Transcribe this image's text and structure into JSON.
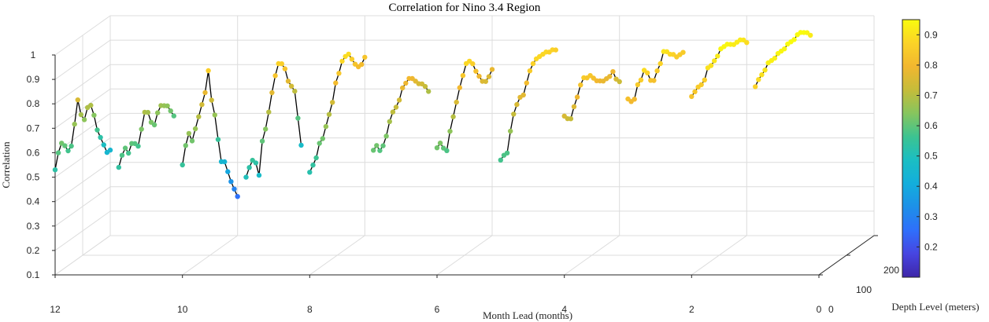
{
  "chart_data": {
    "type": "line",
    "title": "Correlation for Nino 3.4 Region",
    "xlabel": "Month Lead (months)",
    "ylabel": "Depth Level (meters)",
    "zlabel": "Correlation",
    "x_ticks": [
      "12",
      "10",
      "8",
      "6",
      "4",
      "2",
      "0"
    ],
    "y_ticks": [
      "0",
      "100",
      "200"
    ],
    "z_ticks": [
      "0.1",
      "0.2",
      "0.3",
      "0.4",
      "0.5",
      "0.6",
      "0.7",
      "0.8",
      "0.9",
      "1"
    ],
    "xlim": [
      0,
      12
    ],
    "ylim": [
      0,
      200
    ],
    "zlim": [
      0.1,
      1
    ],
    "colorbar_ticks": [
      "0.2",
      "0.3",
      "0.4",
      "0.5",
      "0.6",
      "0.7",
      "0.8",
      "0.9"
    ],
    "colorbar_range": [
      0.1,
      0.95
    ],
    "colormap": [
      "#3e26a8",
      "#4745e1",
      "#2f6ffb",
      "#1d90e8",
      "#13aedc",
      "#1bbec3",
      "#3cc391",
      "#86c55e",
      "#c5bc3a",
      "#f2b72f",
      "#fbd327",
      "#f9fb0e"
    ],
    "series_color": "#000000",
    "series": [
      {
        "lead": 12,
        "values": [
          0.53,
          0.59,
          0.62,
          0.6,
          0.57,
          0.58,
          0.66,
          0.75,
          0.68,
          0.65,
          0.69,
          0.69,
          0.64,
          0.57,
          0.53,
          0.49,
          0.45,
          0.45
        ]
      },
      {
        "lead": 11,
        "values": [
          0.54,
          0.58,
          0.6,
          0.57,
          0.6,
          0.59,
          0.57,
          0.63,
          0.69,
          0.68,
          0.63,
          0.61,
          0.65,
          0.67,
          0.66,
          0.65,
          0.62,
          0.59
        ]
      },
      {
        "lead": 10,
        "values": [
          0.55,
          0.62,
          0.66,
          0.62,
          0.66,
          0.7,
          0.74,
          0.78,
          0.86,
          0.73,
          0.66,
          0.55,
          0.45,
          0.44,
          0.39,
          0.34,
          0.3,
          0.26
        ]
      },
      {
        "lead": 9,
        "values": [
          0.5,
          0.53,
          0.55,
          0.53,
          0.47,
          0.6,
          0.64,
          0.7,
          0.77,
          0.83,
          0.87,
          0.86,
          0.83,
          0.77,
          0.74,
          0.71,
          0.59,
          0.47
        ]
      },
      {
        "lead": 8,
        "values": [
          0.52,
          0.54,
          0.56,
          0.61,
          0.62,
          0.66,
          0.7,
          0.74,
          0.81,
          0.84,
          0.88,
          0.89,
          0.89,
          0.86,
          0.83,
          0.81,
          0.81,
          0.83
        ]
      },
      {
        "lead": 7,
        "values": [
          0.61,
          0.62,
          0.59,
          0.6,
          0.63,
          0.68,
          0.71,
          0.72,
          0.74,
          0.78,
          0.79,
          0.8,
          0.79,
          0.77,
          0.75,
          0.74,
          0.72,
          0.69
        ]
      },
      {
        "lead": 6,
        "values": [
          0.62,
          0.63,
          0.6,
          0.58,
          0.65,
          0.7,
          0.75,
          0.8,
          0.84,
          0.88,
          0.88,
          0.86,
          0.82,
          0.79,
          0.76,
          0.75,
          0.76,
          0.78
        ]
      },
      {
        "lead": 5,
        "values": [
          0.57,
          0.58,
          0.58,
          0.66,
          0.72,
          0.75,
          0.77,
          0.77,
          0.81,
          0.85,
          0.87,
          0.88,
          0.88,
          0.88,
          0.88,
          0.87,
          0.87,
          0.86
        ]
      },
      {
        "lead": 4,
        "values": [
          0.75,
          0.73,
          0.72,
          0.76,
          0.79,
          0.83,
          0.85,
          0.84,
          0.84,
          0.82,
          0.8,
          0.79,
          0.78,
          0.78,
          0.78,
          0.79,
          0.75,
          0.73
        ]
      },
      {
        "lead": 3,
        "values": [
          0.82,
          0.8,
          0.8,
          0.85,
          0.86,
          0.89,
          0.87,
          0.83,
          0.82,
          0.85,
          0.87,
          0.91,
          0.9,
          0.88,
          0.87,
          0.85,
          0.85,
          0.85
        ]
      },
      {
        "lead": 2,
        "values": [
          0.83,
          0.84,
          0.85,
          0.85,
          0.86,
          0.9,
          0.9,
          0.91,
          0.92,
          0.94,
          0.94,
          0.94,
          0.93,
          0.92,
          0.92,
          0.92,
          0.91,
          0.89
        ]
      },
      {
        "lead": 1,
        "values": [
          0.87,
          0.89,
          0.9,
          0.91,
          0.93,
          0.93,
          0.93,
          0.94,
          0.94,
          0.94,
          0.95,
          0.95,
          0.95,
          0.96,
          0.96,
          0.95,
          0.94,
          0.92
        ]
      }
    ]
  }
}
